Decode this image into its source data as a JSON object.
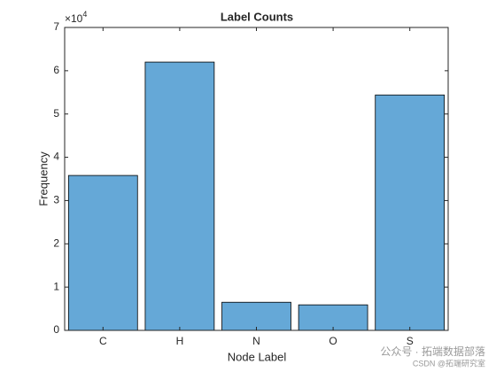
{
  "chart_data": {
    "type": "bar",
    "title": "Label Counts",
    "x_label": "Node Label",
    "y_label": "Frequency",
    "multiplier": {
      "base": "×10",
      "exponent": "4"
    },
    "categories": [
      "C",
      "H",
      "N",
      "O",
      "S"
    ],
    "values": [
      3.58,
      6.2,
      0.65,
      0.59,
      5.44
    ],
    "color": "#65a8d7",
    "ylim": [
      0,
      7
    ],
    "yticks": [
      0,
      1,
      2,
      3,
      4,
      5,
      6,
      7
    ],
    "grid": false,
    "watermark": {
      "line1": "公众号 · 拓端数据部落",
      "line2": "CSDN @拓端研究室"
    }
  }
}
